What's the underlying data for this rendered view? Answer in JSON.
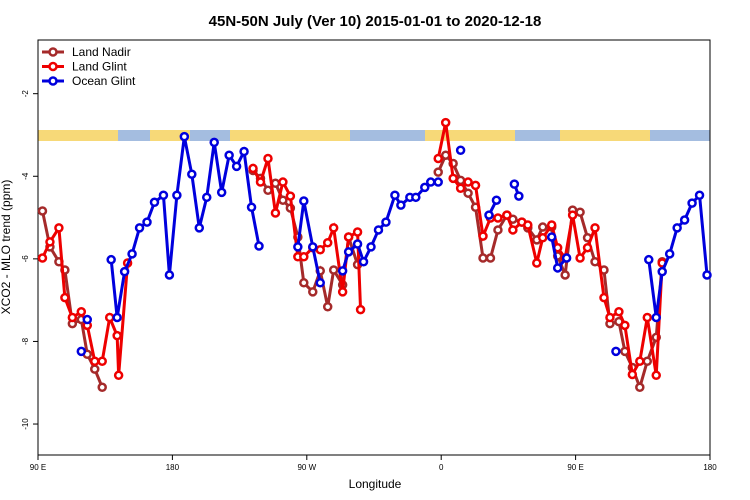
{
  "chart_data": {
    "type": "line",
    "title": "45N-50N July (Ver 10)   2015-01-01 to 2020-12-18",
    "x_label": "Longitude",
    "y_label": "XCO2 - MLO trend (ppm)",
    "xlim": [
      -270,
      180
    ],
    "xticks": [
      {
        "value": -270,
        "label": "90 E"
      },
      {
        "value": -180,
        "label": "180"
      },
      {
        "value": -90,
        "label": "90 W"
      },
      0,
      {
        "value": 90,
        "label": "90 E"
      },
      180
    ],
    "ylim": [
      -10.75,
      -0.7
    ],
    "yticks": [
      -10,
      -8,
      -6,
      -4,
      -2
    ],
    "legend": "top-left",
    "series": [
      {
        "name": "Land Nadir",
        "color": "#a52a2a",
        "x": [
          -267,
          -262,
          -256,
          -252,
          -247,
          -241,
          -237,
          -232,
          -227,
          null,
          -126,
          -121,
          -116,
          -111,
          -106,
          -101,
          -96,
          -92,
          -86,
          -81,
          -76,
          -72,
          -66,
          -62,
          -56,
          null,
          -2,
          3,
          8,
          13,
          18,
          23,
          28,
          33,
          38,
          44,
          48,
          54,
          58,
          64,
          68,
          74,
          78,
          83,
          88,
          93,
          98,
          103,
          109,
          113,
          119,
          123,
          128,
          133,
          138,
          144,
          148
        ],
        "values": [
          -4.84,
          -5.71,
          -6.07,
          -6.27,
          -7.57,
          -7.47,
          -8.31,
          -8.67,
          -9.11,
          null,
          -3.86,
          -4.05,
          -4.34,
          -4.17,
          -4.58,
          -4.77,
          -5.47,
          -6.58,
          -6.8,
          -6.29,
          -7.16,
          -6.27,
          -6.63,
          -5.47,
          -6.14,
          null,
          -3.9,
          -3.49,
          -3.69,
          -4.1,
          -4.41,
          -4.75,
          -5.98,
          -5.98,
          -5.3,
          -4.94,
          -5.04,
          -5.11,
          -5.25,
          -5.54,
          -5.23,
          -5.23,
          -5.93,
          -6.39,
          -4.82,
          -4.87,
          -5.49,
          -6.07,
          -6.27,
          -7.57,
          -7.52,
          -8.24,
          -8.63,
          -9.11,
          -8.48,
          -7.9,
          -6.07
        ]
      },
      {
        "name": "Land Glint",
        "color": "#ee0000",
        "x": [
          -267,
          -262,
          -256,
          -252,
          -247,
          -241,
          -237,
          -232,
          -227,
          -222,
          -217,
          -216,
          -210,
          null,
          -126,
          -121,
          -116,
          -111,
          -106,
          -101,
          -96,
          -92,
          -86,
          -81,
          -76,
          -72,
          -66,
          -62,
          -56,
          -54,
          null,
          -2,
          3,
          8,
          13,
          18,
          23,
          28,
          33,
          38,
          44,
          48,
          54,
          58,
          64,
          68,
          74,
          78,
          83,
          88,
          93,
          98,
          103,
          109,
          113,
          119,
          123,
          128,
          133,
          138,
          144,
          148
        ],
        "values": [
          -5.98,
          -5.59,
          -5.25,
          -6.94,
          -7.42,
          -7.28,
          -7.61,
          -8.48,
          -8.48,
          -7.42,
          -7.86,
          -8.82,
          -6.1,
          null,
          -3.81,
          -4.14,
          -3.57,
          -4.89,
          -4.14,
          -4.48,
          -5.95,
          -5.95,
          -5.73,
          -5.78,
          -5.61,
          -5.25,
          -6.8,
          -5.47,
          -5.35,
          -7.23,
          null,
          -3.57,
          -2.7,
          -4.05,
          -4.29,
          -4.14,
          -4.22,
          -5.45,
          -5.01,
          -5.01,
          -4.94,
          -5.3,
          -5.11,
          -5.18,
          -6.1,
          -5.49,
          -5.18,
          -5.73,
          -5.98,
          -4.94,
          -5.98,
          -5.73,
          -5.25,
          -6.94,
          -7.42,
          -7.28,
          -7.61,
          -8.8,
          -8.48,
          -7.42,
          -8.82,
          -6.1
        ]
      },
      {
        "name": "Ocean Glint",
        "color": "#0000dd",
        "x": [
          -241,
          null,
          -237,
          null,
          -221,
          -217,
          -212,
          -207,
          -202,
          -197,
          -192,
          -186,
          -182,
          -177,
          -172,
          -167,
          -162,
          -157,
          -152,
          -147,
          -142,
          -137,
          -132,
          -127,
          -122,
          null,
          -96,
          -92,
          -86,
          -81,
          null,
          -66,
          -62,
          -56,
          -52,
          -47,
          -42,
          -37,
          -31,
          -27,
          -21,
          -17,
          -11,
          -7,
          -2,
          null,
          13,
          null,
          32,
          37,
          null,
          49,
          52,
          null,
          74,
          78,
          84,
          null,
          117,
          null,
          139,
          144,
          148,
          153,
          158,
          163,
          168,
          173,
          178
        ],
        "values": [
          -8.24,
          null,
          -7.47,
          null,
          -6.02,
          -7.42,
          -6.31,
          -5.88,
          -5.25,
          -5.11,
          -4.63,
          -4.46,
          -6.39,
          -4.46,
          -3.04,
          -3.95,
          -5.25,
          -4.51,
          -3.18,
          -4.39,
          -3.49,
          -3.76,
          -3.4,
          -4.75,
          -5.69,
          null,
          -5.71,
          -4.6,
          -5.71,
          -6.58,
          null,
          -6.29,
          -5.83,
          -5.64,
          -6.07,
          -5.71,
          -5.3,
          -5.11,
          -4.46,
          -4.7,
          -4.51,
          -4.51,
          -4.27,
          -4.14,
          -4.14,
          null,
          -3.37,
          null,
          -4.94,
          -4.58,
          null,
          -4.19,
          -4.48,
          null,
          -5.47,
          -6.22,
          -5.98,
          null,
          -8.24,
          null,
          -6.02,
          -7.42,
          -6.31,
          -5.88,
          -5.25,
          -5.06,
          -4.65,
          -4.46,
          -6.39
        ]
      }
    ]
  }
}
